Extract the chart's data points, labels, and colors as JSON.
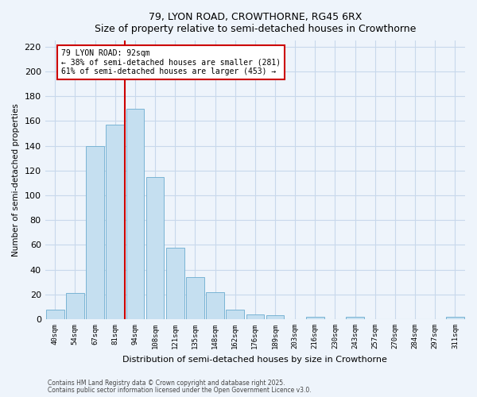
{
  "title": "79, LYON ROAD, CROWTHORNE, RG45 6RX",
  "subtitle": "Size of property relative to semi-detached houses in Crowthorne",
  "xlabel": "Distribution of semi-detached houses by size in Crowthorne",
  "ylabel": "Number of semi-detached properties",
  "bar_labels": [
    "40sqm",
    "54sqm",
    "67sqm",
    "81sqm",
    "94sqm",
    "108sqm",
    "121sqm",
    "135sqm",
    "148sqm",
    "162sqm",
    "176sqm",
    "189sqm",
    "203sqm",
    "216sqm",
    "230sqm",
    "243sqm",
    "257sqm",
    "270sqm",
    "284sqm",
    "297sqm",
    "311sqm"
  ],
  "bar_values": [
    8,
    21,
    140,
    157,
    170,
    115,
    58,
    34,
    22,
    8,
    4,
    3,
    0,
    2,
    0,
    2,
    0,
    0,
    0,
    0,
    2
  ],
  "bar_color": "#c5dff0",
  "bar_edge_color": "#7ab4d4",
  "vline_index": 3.5,
  "vline_color": "#cc0000",
  "annotation_title": "79 LYON ROAD: 92sqm",
  "annotation_smaller": "← 38% of semi-detached houses are smaller (281)",
  "annotation_larger": "61% of semi-detached houses are larger (453) →",
  "annotation_box_facecolor": "#ffffff",
  "annotation_box_edgecolor": "#cc0000",
  "ylim": [
    0,
    225
  ],
  "yticks": [
    0,
    20,
    40,
    60,
    80,
    100,
    120,
    140,
    160,
    180,
    200,
    220
  ],
  "footnote1": "Contains HM Land Registry data © Crown copyright and database right 2025.",
  "footnote2": "Contains public sector information licensed under the Open Government Licence v3.0.",
  "bg_color": "#eef4fb",
  "grid_color": "#c8d8eb"
}
